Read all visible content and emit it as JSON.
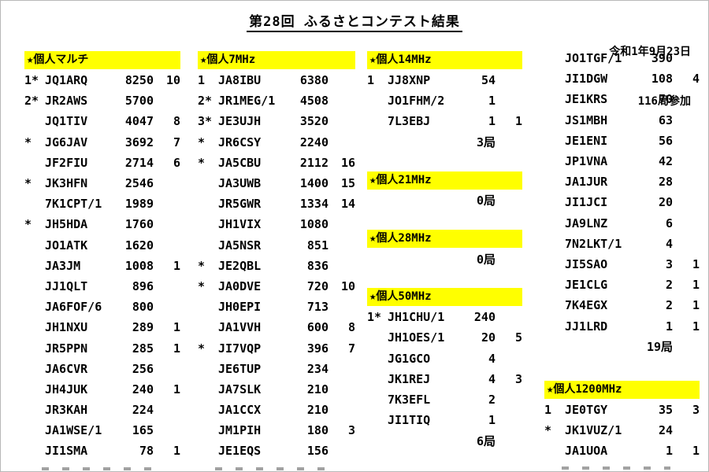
{
  "page": {
    "title": "第28回 ふるさとコンテスト結果",
    "date": "令和1年9月23日",
    "participants": "116局参加"
  },
  "columns": [
    {
      "name": "column-kojin-multi",
      "clipped": true,
      "blocks": [
        {
          "header": "★個人マルチ",
          "rows": [
            {
              "rank": "1*",
              "call": "JQ1ARQ",
              "score": "8250",
              "mult": "10"
            },
            {
              "rank": "2*",
              "call": "JR2AWS",
              "score": "5700",
              "mult": ""
            },
            {
              "rank": "",
              "call": "JQ1TIV",
              "score": "4047",
              "mult": "8"
            },
            {
              "rank": "*",
              "call": "JG6JAV",
              "score": "3692",
              "mult": "7"
            },
            {
              "rank": "",
              "call": "JF2FIU",
              "score": "2714",
              "mult": "6"
            },
            {
              "rank": "*",
              "call": "JK3HFN",
              "score": "2546",
              "mult": ""
            },
            {
              "rank": "",
              "call": "7K1CPT/1",
              "score": "1989",
              "mult": ""
            },
            {
              "rank": "*",
              "call": "JH5HDA",
              "score": "1760",
              "mult": ""
            },
            {
              "rank": "",
              "call": "JO1ATK",
              "score": "1620",
              "mult": ""
            },
            {
              "rank": "",
              "call": "JA3JM",
              "score": "1008",
              "mult": "1"
            },
            {
              "rank": "",
              "call": "JJ1QLT",
              "score": "896",
              "mult": ""
            },
            {
              "rank": "",
              "call": "JA6FOF/6",
              "score": "800",
              "mult": ""
            },
            {
              "rank": "",
              "call": "JH1NXU",
              "score": "289",
              "mult": "1"
            },
            {
              "rank": "",
              "call": "JR5PPN",
              "score": "285",
              "mult": "1"
            },
            {
              "rank": "",
              "call": "JA6CVR",
              "score": "256",
              "mult": ""
            },
            {
              "rank": "",
              "call": "JH4JUK",
              "score": "240",
              "mult": "1"
            },
            {
              "rank": "",
              "call": "JR3KAH",
              "score": "224",
              "mult": ""
            },
            {
              "rank": "",
              "call": "JA1WSE/1",
              "score": "165",
              "mult": ""
            },
            {
              "rank": "",
              "call": "JI1SMA",
              "score": "78",
              "mult": "1"
            }
          ],
          "total": ""
        }
      ]
    },
    {
      "name": "column-kojin-7mhz",
      "clipped": true,
      "blocks": [
        {
          "header": "★個人7MHz",
          "rows": [
            {
              "rank": "1",
              "call": "JA8IBU",
              "score": "6380",
              "mult": ""
            },
            {
              "rank": "2*",
              "call": "JR1MEG/1",
              "score": "4508",
              "mult": ""
            },
            {
              "rank": "3*",
              "call": "JE3UJH",
              "score": "3520",
              "mult": ""
            },
            {
              "rank": "*",
              "call": "JR6CSY",
              "score": "2240",
              "mult": ""
            },
            {
              "rank": "*",
              "call": "JA5CBU",
              "score": "2112",
              "mult": "16"
            },
            {
              "rank": "",
              "call": "JA3UWB",
              "score": "1400",
              "mult": "15"
            },
            {
              "rank": "",
              "call": "JR5GWR",
              "score": "1334",
              "mult": "14"
            },
            {
              "rank": "",
              "call": "JH1VIX",
              "score": "1080",
              "mult": ""
            },
            {
              "rank": "",
              "call": "JA5NSR",
              "score": "851",
              "mult": ""
            },
            {
              "rank": "*",
              "call": "JE2QBL",
              "score": "836",
              "mult": ""
            },
            {
              "rank": "*",
              "call": "JA0DVE",
              "score": "720",
              "mult": "10"
            },
            {
              "rank": "",
              "call": "JH0EPI",
              "score": "713",
              "mult": ""
            },
            {
              "rank": "",
              "call": "JA1VVH",
              "score": "600",
              "mult": "8"
            },
            {
              "rank": "*",
              "call": "JI7VQP",
              "score": "396",
              "mult": "7"
            },
            {
              "rank": "",
              "call": "JE6TUP",
              "score": "234",
              "mult": ""
            },
            {
              "rank": "",
              "call": "JA7SLK",
              "score": "210",
              "mult": ""
            },
            {
              "rank": "",
              "call": "JA1CCX",
              "score": "210",
              "mult": ""
            },
            {
              "rank": "",
              "call": "JM1PIH",
              "score": "180",
              "mult": "3"
            },
            {
              "rank": "",
              "call": "JE1EQS",
              "score": "156",
              "mult": ""
            }
          ],
          "total": ""
        }
      ]
    },
    {
      "name": "column-kojin-hf-vhf",
      "clipped": false,
      "blocks": [
        {
          "header": "★個人14MHz",
          "rows": [
            {
              "rank": "1",
              "call": "JJ8XNP",
              "score": "54",
              "mult": ""
            },
            {
              "rank": "",
              "call": "JO1FHM/2",
              "score": "1",
              "mult": ""
            },
            {
              "rank": "",
              "call": "7L3EBJ",
              "score": "1",
              "mult": "1"
            }
          ],
          "total": "3局"
        },
        {
          "header": "★個人21MHz",
          "rows": [],
          "total": "0局"
        },
        {
          "header": "★個人28MHz",
          "rows": [],
          "total": "0局"
        },
        {
          "header": "★個人50MHz",
          "rows": [
            {
              "rank": "1*",
              "call": "JH1CHU/1",
              "score": "240",
              "mult": ""
            },
            {
              "rank": "",
              "call": "JH1OES/1",
              "score": "20",
              "mult": "5"
            },
            {
              "rank": "",
              "call": "JG1GCO",
              "score": "4",
              "mult": ""
            },
            {
              "rank": "",
              "call": "JK1REJ",
              "score": "4",
              "mult": "3"
            },
            {
              "rank": "",
              "call": "7K3EFL",
              "score": "2",
              "mult": ""
            },
            {
              "rank": "",
              "call": "JI1TIQ",
              "score": "1",
              "mult": ""
            }
          ],
          "total": "6局"
        }
      ]
    },
    {
      "name": "column-continuation-1200mhz",
      "clipped": true,
      "blocks": [
        {
          "header": "",
          "rows": [
            {
              "rank": "",
              "call": "JO1TGF/1",
              "score": "390",
              "mult": ""
            },
            {
              "rank": "",
              "call": "JI1DGW",
              "score": "108",
              "mult": "4"
            },
            {
              "rank": "",
              "call": "JE1KRS",
              "score": "70",
              "mult": ""
            },
            {
              "rank": "",
              "call": "JS1MBH",
              "score": "63",
              "mult": ""
            },
            {
              "rank": "",
              "call": "JE1ENI",
              "score": "56",
              "mult": ""
            },
            {
              "rank": "",
              "call": "JP1VNA",
              "score": "42",
              "mult": ""
            },
            {
              "rank": "",
              "call": "JA1JUR",
              "score": "28",
              "mult": ""
            },
            {
              "rank": "",
              "call": "JI1JCI",
              "score": "20",
              "mult": ""
            },
            {
              "rank": "",
              "call": "JA9LNZ",
              "score": "6",
              "mult": ""
            },
            {
              "rank": "",
              "call": "7N2LKT/1",
              "score": "4",
              "mult": ""
            },
            {
              "rank": "",
              "call": "JI5SAO",
              "score": "3",
              "mult": "1"
            },
            {
              "rank": "",
              "call": "JE1CLG",
              "score": "2",
              "mult": "1"
            },
            {
              "rank": "",
              "call": "7K4EGX",
              "score": "2",
              "mult": "1"
            },
            {
              "rank": "",
              "call": "JJ1LRD",
              "score": "1",
              "mult": "1"
            }
          ],
          "total": "19局"
        },
        {
          "header": "★個人1200MHz",
          "rows": [
            {
              "rank": "1",
              "call": "JE0TGY",
              "score": "35",
              "mult": "3"
            },
            {
              "rank": "*",
              "call": "JK1VUZ/1",
              "score": "24",
              "mult": ""
            },
            {
              "rank": "",
              "call": "JA1UOA",
              "score": "1",
              "mult": "1"
            }
          ],
          "total": ""
        }
      ]
    }
  ]
}
